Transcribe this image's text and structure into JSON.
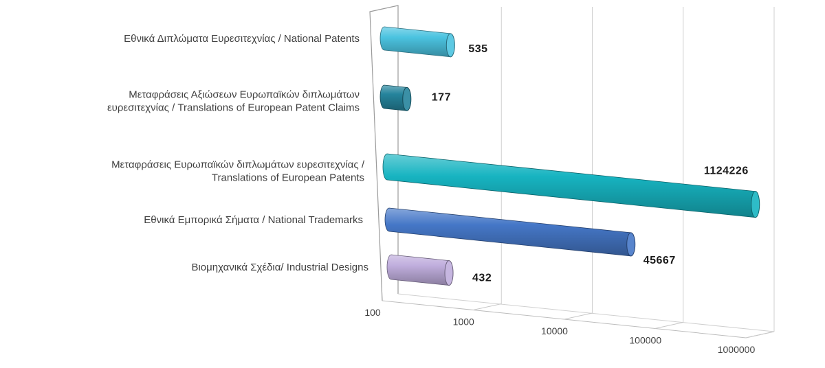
{
  "chart_data": {
    "type": "bar",
    "orientation": "horizontal",
    "x_scale": "log",
    "xlim": [
      100,
      1000000
    ],
    "x_ticks": [
      "100",
      "1000",
      "10000",
      "100000",
      "1000000"
    ],
    "grid": true,
    "legend": "none",
    "categories": [
      [
        "Εθνικά Διπλώματα Ευρεσιτεχνίας / National Patents"
      ],
      [
        "Μεταφράσεις Αξιώσεων Ευρωπαϊκών διπλωμάτων",
        "ευρεσιτεχνίας / Translations of European Patent Claims"
      ],
      [
        "Μεταφράσεις Ευρωπαϊκών διπλωμάτων ευρεσιτεχνίας /",
        "Translations of European Patents"
      ],
      [
        "Εθνικά Εμπορικά Σήματα / National Trademarks"
      ],
      [
        "Βιομηχανικά Σχέδια/ Industrial Designs"
      ]
    ],
    "values": [
      535,
      177,
      1124226,
      45667,
      432
    ],
    "value_labels": [
      "535",
      "177",
      "1124226",
      "45667",
      "432"
    ],
    "colors": [
      "#4bc3e0",
      "#25849c",
      "#17b4c1",
      "#4577c7",
      "#c0aedd"
    ],
    "title": "",
    "xlabel": "",
    "ylabel": ""
  }
}
